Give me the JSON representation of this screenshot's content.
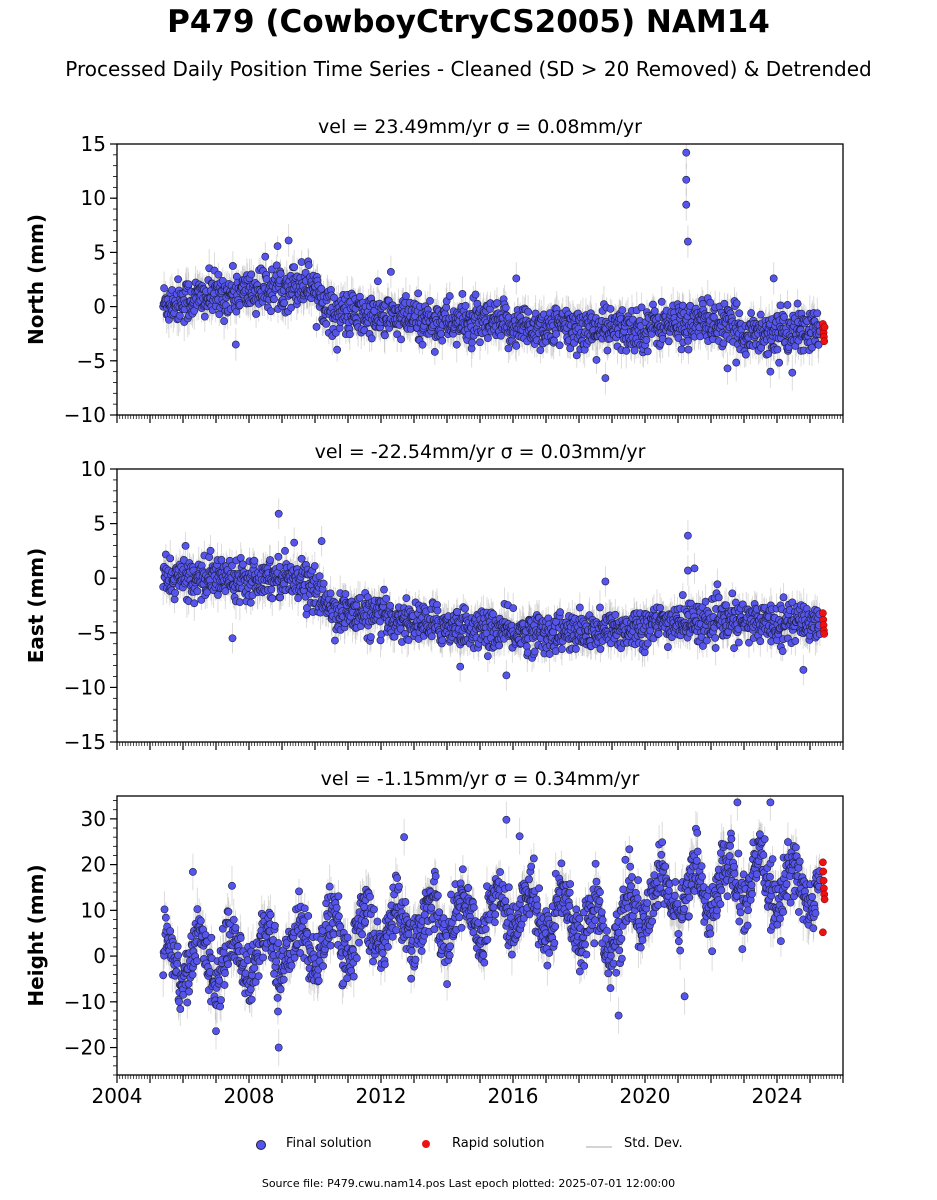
{
  "title": "P479 (CowboyCtryCS2005) NAM14",
  "subtitle": "Processed Daily Position Time Series - Cleaned (SD > 20 Removed) & Detrended",
  "footer": "Source file: P479.cwu.nam14.pos  Last epoch plotted: 2025-07-01 12:00:00",
  "colors": {
    "final": "#5555ee",
    "final_edge": "#1f1f3a",
    "rapid": "#ee1111",
    "std": "#9a9a9a"
  },
  "legend": {
    "final": "Final solution",
    "rapid": "Rapid solution",
    "std": "Std. Dev."
  },
  "chart_data": [
    {
      "type": "scatter",
      "component": "north",
      "title": "vel = 23.49mm/yr   σ = 0.08mm/yr",
      "ylabel": "North (mm)",
      "ylim": [
        -10,
        15
      ],
      "yticks": [
        -10,
        -5,
        0,
        5,
        10,
        15
      ],
      "xlim": [
        2004,
        2026
      ],
      "xticks": [
        2004,
        2008,
        2012,
        2016,
        2020,
        2024
      ],
      "show_xtick_labels": false,
      "trend": [
        [
          2005.4,
          0.3
        ],
        [
          2007.5,
          1.2
        ],
        [
          2009.9,
          2.2
        ],
        [
          2010.5,
          -0.6
        ],
        [
          2013,
          -1.2
        ],
        [
          2016,
          -1.8
        ],
        [
          2019.5,
          -2.2
        ],
        [
          2020.5,
          -1.7
        ],
        [
          2022,
          -1.4
        ],
        [
          2023,
          -2.4
        ],
        [
          2025.3,
          -2.3
        ]
      ],
      "scatter_sd": 1.0,
      "err": 1.5,
      "outliers": [
        [
          2021.25,
          14.2
        ],
        [
          2021.25,
          11.7
        ],
        [
          2021.25,
          9.4
        ],
        [
          2021.3,
          6.0
        ],
        [
          2009.2,
          6.1
        ],
        [
          2007.6,
          -3.5
        ],
        [
          2018.8,
          -6.6
        ],
        [
          2022.5,
          -5.7
        ],
        [
          2023.8,
          -6.0
        ],
        [
          2012.3,
          3.2
        ],
        [
          2016.1,
          2.6
        ],
        [
          2023.9,
          2.6
        ]
      ],
      "rapid": [
        [
          2025.3,
          -1.6
        ],
        [
          2025.31,
          -2.0
        ],
        [
          2025.32,
          -2.4
        ],
        [
          2025.33,
          -2.8
        ],
        [
          2025.34,
          -3.2
        ],
        [
          2025.35,
          -1.9
        ]
      ]
    },
    {
      "type": "scatter",
      "component": "east",
      "title": "vel = -22.54mm/yr   σ = 0.03mm/yr",
      "ylabel": "East (mm)",
      "ylim": [
        -15,
        10
      ],
      "yticks": [
        -15,
        -10,
        -5,
        0,
        5,
        10
      ],
      "xlim": [
        2004,
        2026
      ],
      "xticks": [
        2004,
        2008,
        2012,
        2016,
        2020,
        2024
      ],
      "show_xtick_labels": false,
      "trend": [
        [
          2005.4,
          0.0
        ],
        [
          2009.5,
          0.2
        ],
        [
          2010.6,
          -3.0
        ],
        [
          2013,
          -4.0
        ],
        [
          2016,
          -5.0
        ],
        [
          2018.5,
          -5.0
        ],
        [
          2021,
          -4.0
        ],
        [
          2025.3,
          -4.0
        ]
      ],
      "scatter_sd": 0.9,
      "err": 1.4,
      "outliers": [
        [
          2008.9,
          5.9
        ],
        [
          2021.3,
          3.9
        ],
        [
          2021.3,
          0.7
        ],
        [
          2021.5,
          0.9
        ],
        [
          2007.5,
          -5.5
        ],
        [
          2015.8,
          -8.9
        ],
        [
          2014.4,
          -8.1
        ],
        [
          2024.8,
          -8.4
        ],
        [
          2018.8,
          -0.3
        ],
        [
          2010.2,
          3.4
        ]
      ],
      "rapid": [
        [
          2025.3,
          -3.2
        ],
        [
          2025.31,
          -3.8
        ],
        [
          2025.32,
          -4.3
        ],
        [
          2025.33,
          -4.8
        ],
        [
          2025.34,
          -5.1
        ]
      ]
    },
    {
      "type": "scatter",
      "component": "height",
      "title": "vel = -1.15mm/yr   σ = 0.34mm/yr",
      "ylabel": "Height (mm)",
      "ylim": [
        -26,
        35
      ],
      "yticks": [
        -20,
        -10,
        0,
        10,
        20,
        30
      ],
      "xlim": [
        2004,
        2026
      ],
      "xticks": [
        2004,
        2008,
        2012,
        2016,
        2020,
        2024
      ],
      "show_xtick_labels": true,
      "trend": [
        [
          2005.4,
          -1.0
        ],
        [
          2008,
          0.0
        ],
        [
          2010,
          3.0
        ],
        [
          2012,
          6.0
        ],
        [
          2014,
          8.0
        ],
        [
          2016,
          10.0
        ],
        [
          2018,
          9.0
        ],
        [
          2019,
          4.0
        ],
        [
          2020,
          12.0
        ],
        [
          2022,
          15.0
        ],
        [
          2023,
          16.0
        ],
        [
          2025.3,
          15.0
        ]
      ],
      "seasonal_amp": 5.0,
      "scatter_sd": 3.2,
      "err": 4.0,
      "outliers": [
        [
          2022.8,
          33.6
        ],
        [
          2023.8,
          33.6
        ],
        [
          2015.8,
          29.8
        ],
        [
          2012.7,
          26.0
        ],
        [
          2016.2,
          26.2
        ],
        [
          2008.9,
          -20.0
        ],
        [
          2007.0,
          -16.4
        ],
        [
          2021.2,
          -8.8
        ],
        [
          2006.3,
          18.4
        ],
        [
          2019.2,
          -13.0
        ]
      ],
      "rapid": [
        [
          2025.3,
          20.5
        ],
        [
          2025.31,
          18.5
        ],
        [
          2025.32,
          16.5
        ],
        [
          2025.33,
          14.8
        ],
        [
          2025.34,
          13.5
        ],
        [
          2025.35,
          12.4
        ],
        [
          2025.3,
          5.2
        ]
      ]
    }
  ]
}
